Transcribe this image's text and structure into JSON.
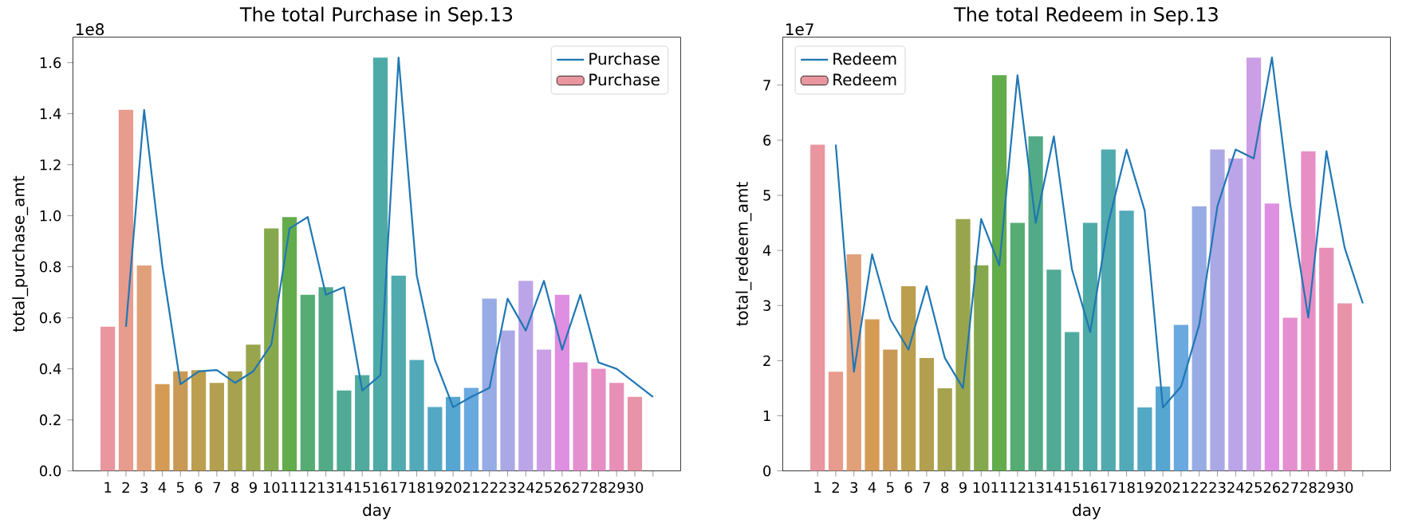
{
  "chart_data": [
    {
      "type": "bar",
      "title": "The total Purchase in Sep.13",
      "xlabel": "day",
      "ylabel": "total_purchase_amt",
      "annotations": [
        "1e8"
      ],
      "legend": "top right",
      "categories": [
        "1",
        "2",
        "3",
        "4",
        "5",
        "6",
        "7",
        "8",
        "9",
        "10",
        "11",
        "12",
        "13",
        "14",
        "15",
        "16",
        "17",
        "18",
        "19",
        "20",
        "21",
        "22",
        "23",
        "24",
        "25",
        "26",
        "27",
        "28",
        "29",
        "30",
        null
      ],
      "ylim": [
        0,
        1.7
      ],
      "yticks": [
        {
          "value": 0,
          "label": "0.0"
        },
        {
          "value": 0.2,
          "label": "0.2"
        },
        {
          "value": 0.4,
          "label": "0.4"
        },
        {
          "value": 0.6,
          "label": "0.6"
        },
        {
          "value": 0.8,
          "label": "0.8"
        },
        {
          "value": 1.0,
          "label": "1.0"
        },
        {
          "value": 1.2,
          "label": "1.2"
        },
        {
          "value": 1.4,
          "label": "1.4"
        },
        {
          "value": 1.6,
          "label": "1.6"
        }
      ],
      "series": [
        {
          "type": "line",
          "name": "Purchase",
          "color": "#1f77b4",
          "values": [
            null,
            0.565,
            1.415,
            0.805,
            0.34,
            0.39,
            0.395,
            0.345,
            0.39,
            0.495,
            0.95,
            0.995,
            0.69,
            0.72,
            0.315,
            0.375,
            1.62,
            0.765,
            0.435,
            0.25,
            0.29,
            0.325,
            0.675,
            0.55,
            0.745,
            0.475,
            0.69,
            0.425,
            0.4,
            0.345,
            0.29
          ]
        },
        {
          "name": "Purchase",
          "values": [
            0.565,
            1.415,
            0.805,
            0.34,
            0.39,
            0.395,
            0.345,
            0.39,
            0.495,
            0.95,
            0.995,
            0.69,
            0.72,
            0.315,
            0.375,
            1.62,
            0.765,
            0.435,
            0.25,
            0.29,
            0.325,
            0.675,
            0.55,
            0.745,
            0.475,
            0.69,
            0.425,
            0.4,
            0.345,
            0.29,
            null
          ],
          "colors": [
            "#e9969f",
            "#e79c8d",
            "#e0a07a",
            "#d59b55",
            "#c99a55",
            "#bc9e4f",
            "#b2a050",
            "#a6a24e",
            "#99a54d",
            "#86a84d",
            "#62ac4c",
            "#55ad73",
            "#52ab86",
            "#51aa93",
            "#50aa9d",
            "#4eaaa6",
            "#50aaae",
            "#52a9b8",
            "#53a8c4",
            "#55a6d0",
            "#6aa9e0",
            "#97abe5",
            "#aba8e6",
            "#bba5e8",
            "#cb9fe5",
            "#df8fe2",
            "#e48fd0",
            "#e78ec5",
            "#e78fb7",
            "#e893a8",
            null
          ]
        }
      ]
    },
    {
      "type": "bar",
      "title": "The total Redeem in Sep.13",
      "xlabel": "day",
      "ylabel": "total_redeem_amt",
      "annotations": [
        "1e7"
      ],
      "legend": "top left",
      "categories": [
        "1",
        "2",
        "3",
        "4",
        "5",
        "6",
        "7",
        "8",
        "9",
        "10",
        "11",
        "12",
        "13",
        "14",
        "15",
        "16",
        "17",
        "18",
        "19",
        "20",
        "21",
        "22",
        "23",
        "24",
        "25",
        "26",
        "27",
        "28",
        "29",
        "30",
        null
      ],
      "ylim": [
        0,
        7.87
      ],
      "yticks": [
        0,
        1,
        2,
        3,
        4,
        5,
        6,
        7
      ],
      "series": [
        {
          "type": "line",
          "name": "Redeem",
          "color": "#1f77b4",
          "values": [
            null,
            5.92,
            1.8,
            3.93,
            2.75,
            2.2,
            3.35,
            2.05,
            1.5,
            4.57,
            3.73,
            7.18,
            4.5,
            6.07,
            3.65,
            2.52,
            4.5,
            5.83,
            4.72,
            1.15,
            1.53,
            2.65,
            4.8,
            5.83,
            5.67,
            7.5,
            4.85,
            2.78,
            5.8,
            4.05,
            3.04
          ]
        },
        {
          "name": "Redeem",
          "values": [
            5.92,
            1.8,
            3.93,
            2.75,
            2.2,
            3.35,
            2.05,
            1.5,
            4.57,
            3.73,
            7.18,
            4.5,
            6.07,
            3.65,
            2.52,
            4.5,
            5.83,
            4.72,
            1.15,
            1.53,
            2.65,
            4.8,
            5.83,
            5.67,
            7.5,
            4.85,
            2.78,
            5.8,
            4.05,
            3.04,
            null
          ],
          "colors": [
            "#e9969f",
            "#e79c8d",
            "#e0a07a",
            "#d59b55",
            "#c99a55",
            "#bc9e4f",
            "#b2a050",
            "#a6a24e",
            "#99a54d",
            "#86a84d",
            "#62ac4c",
            "#55ad73",
            "#52ab86",
            "#51aa93",
            "#50aa9d",
            "#4eaaa6",
            "#50aaae",
            "#52a9b8",
            "#53a8c4",
            "#55a6d0",
            "#6aa9e0",
            "#97abe5",
            "#aba8e6",
            "#bba5e8",
            "#cb9fe5",
            "#df8fe2",
            "#e48fd0",
            "#e78ec5",
            "#e78fb7",
            "#e893a8",
            null
          ]
        }
      ]
    }
  ]
}
